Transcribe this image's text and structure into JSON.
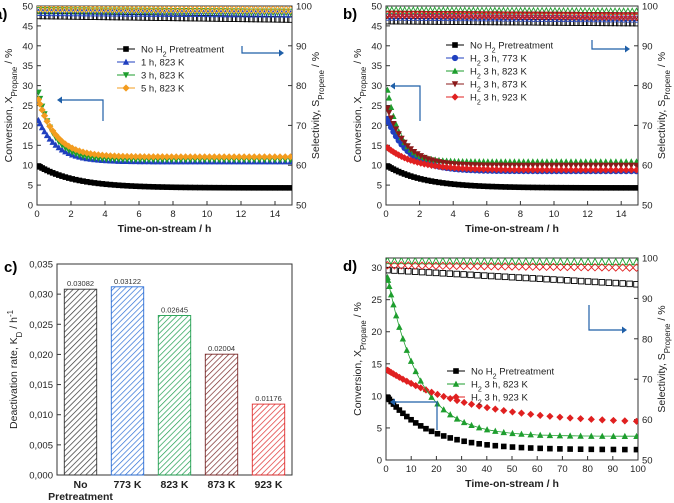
{
  "chart_data": [
    {
      "panel": "a)",
      "type": "scatter",
      "xlabel": "Time-on-stream / h",
      "ylabel_left": {
        "prefix": "Conversion, X",
        "sub": "Propane",
        "suffix": " / %"
      },
      "ylabel_right": {
        "prefix": "Selectivity, S",
        "sub": "Propene",
        "suffix": " / %"
      },
      "xlim": [
        0,
        15
      ],
      "ylim_left": [
        0,
        50
      ],
      "ylim_right": [
        50,
        100
      ],
      "xticks": [
        0,
        2,
        4,
        6,
        8,
        10,
        12,
        14
      ],
      "yticks_left": [
        0,
        5,
        10,
        15,
        20,
        25,
        30,
        35,
        40,
        45,
        50
      ],
      "yticks_right": [
        50,
        60,
        70,
        80,
        90,
        100
      ],
      "legend_position": "upper-middle",
      "series": [
        {
          "name": "No H2 Pretreatment",
          "label": [
            "No H",
            "2",
            " Pretreatment"
          ],
          "color": "#000000",
          "marker": "square",
          "conversion": {
            "start": 9.8,
            "end": 4.3,
            "k": 0.45
          },
          "selectivity": {
            "start": 97.5,
            "end": 96.6
          }
        },
        {
          "name": "1 h, 823 K",
          "label": [
            "1 h, 823 K"
          ],
          "color": "#1f3fbf",
          "marker": "triangle-up",
          "conversion": {
            "start": 21.3,
            "end": 10.9,
            "k": 0.9
          },
          "selectivity": {
            "start": 98.3,
            "end": 97.9
          }
        },
        {
          "name": "3 h, 823 K",
          "label": [
            "3 h, 823 K"
          ],
          "color": "#1e9e2e",
          "marker": "triangle-down",
          "conversion": {
            "start": 28.3,
            "end": 11.3,
            "k": 1.1
          },
          "selectivity": {
            "start": 98.9,
            "end": 98.5
          }
        },
        {
          "name": "5 h, 823 K",
          "label": [
            "5 h, 823 K"
          ],
          "color": "#f39c1f",
          "marker": "diamond",
          "conversion": {
            "start": 26.5,
            "end": 12.1,
            "k": 0.95
          },
          "selectivity": {
            "start": 99.3,
            "end": 99.0
          }
        }
      ]
    },
    {
      "panel": "b)",
      "type": "scatter",
      "xlabel": "Time-on-stream / h",
      "ylabel_left": {
        "prefix": "Conversion, X",
        "sub": "Propane",
        "suffix": " / %"
      },
      "ylabel_right": {
        "prefix": "Selectivity, S",
        "sub": "Propene",
        "suffix": " / %"
      },
      "xlim": [
        0,
        15
      ],
      "ylim_left": [
        0,
        50
      ],
      "ylim_right": [
        50,
        100
      ],
      "xticks": [
        0,
        2,
        4,
        6,
        8,
        10,
        12,
        14
      ],
      "yticks_left": [
        0,
        5,
        10,
        15,
        20,
        25,
        30,
        35,
        40,
        45,
        50
      ],
      "yticks_right": [
        50,
        60,
        70,
        80,
        90,
        100
      ],
      "legend_position": "upper-middle",
      "series": [
        {
          "name": "No H2 Pretreatment",
          "label": [
            "No H",
            "2",
            " Pretreatment"
          ],
          "color": "#000000",
          "marker": "square",
          "conversion": {
            "start": 9.8,
            "end": 4.3,
            "k": 0.45
          },
          "selectivity": {
            "start": 96.2,
            "end": 95.7
          }
        },
        {
          "name": "H2 3 h, 773 K",
          "label": [
            "H",
            "2",
            " 3 h, 773 K"
          ],
          "color": "#1f3fbf",
          "marker": "circle",
          "conversion": {
            "start": 21.6,
            "end": 8.5,
            "k": 0.8
          },
          "selectivity": {
            "start": 97.2,
            "end": 96.7
          }
        },
        {
          "name": "H2 3 h, 823 K",
          "label": [
            "H",
            "2",
            " 3 h, 823 K"
          ],
          "color": "#1e9e2e",
          "marker": "triangle-up",
          "conversion": {
            "start": 28.9,
            "end": 10.9,
            "k": 1.3
          },
          "selectivity": {
            "start": 98.9,
            "end": 98.6
          }
        },
        {
          "name": "H2 3 h, 873 K",
          "label": [
            "H",
            "2",
            " 3 h, 873 K"
          ],
          "color": "#8b1a1a",
          "marker": "triangle-down",
          "conversion": {
            "start": 24.3,
            "end": 9.9,
            "k": 0.9
          },
          "selectivity": {
            "start": 98.0,
            "end": 97.6
          }
        },
        {
          "name": "H2 3 h, 923 K",
          "label": [
            "H",
            "2",
            " 3 h, 923 K"
          ],
          "color": "#e02020",
          "marker": "diamond",
          "conversion": {
            "start": 14.4,
            "end": 8.8,
            "k": 0.6
          },
          "selectivity": {
            "start": 97.8,
            "end": 97.3
          }
        }
      ]
    },
    {
      "panel": "c)",
      "type": "bar",
      "ylabel": {
        "prefix": "Deactivation rate, K",
        "sub": "D",
        "suffix": " / h",
        "sup": "-1"
      },
      "ylim": [
        0,
        0.035
      ],
      "yticks": [
        "0,000",
        "0,005",
        "0,010",
        "0,015",
        "0,020",
        "0,025",
        "0,030",
        "0,035"
      ],
      "categories": [
        [
          "No",
          "Pretreatment"
        ],
        [
          "773 K"
        ],
        [
          "823 K"
        ],
        [
          "873 K"
        ],
        [
          "923 K"
        ]
      ],
      "values": [
        0.03082,
        0.03122,
        0.02645,
        0.02004,
        0.01176
      ],
      "data_labels": [
        "0.03082",
        "0.03122",
        "0.02645",
        "0.02004",
        "0.01176"
      ],
      "colors": [
        "#333333",
        "#2d6fd6",
        "#1e9e4e",
        "#7a2a2a",
        "#e03030"
      ]
    },
    {
      "panel": "d)",
      "type": "scatter",
      "xlabel": "Time-on-stream / h",
      "ylabel_left": {
        "prefix": "Conversion, X",
        "sub": "Propane",
        "suffix": " / %"
      },
      "ylabel_right": {
        "prefix": "Selectivity, S",
        "sub": "Propene",
        "suffix": " / %"
      },
      "xlim": [
        0,
        100
      ],
      "ylim_left": [
        0,
        31.5
      ],
      "ylim_right": [
        50,
        100
      ],
      "xticks": [
        0,
        10,
        20,
        30,
        40,
        50,
        60,
        70,
        80,
        90,
        100
      ],
      "yticks_left": [
        0,
        5,
        10,
        15,
        20,
        25,
        30
      ],
      "yticks_right": [
        50,
        60,
        70,
        80,
        90,
        100
      ],
      "legend_position": "center-right",
      "series": [
        {
          "name": "No H2 Pretreatment",
          "label": [
            "No H",
            "2",
            " Pretreatment"
          ],
          "color": "#000000",
          "marker": "square",
          "conversion": {
            "start": 9.8,
            "end": 1.6,
            "k": 0.06
          },
          "selectivity": {
            "start": 97.0,
            "end": 93.5
          }
        },
        {
          "name": "H2 3 h, 823 K",
          "label": [
            "H",
            "2",
            " 3 h, 823 K"
          ],
          "color": "#1e9e2e",
          "marker": "triangle-up",
          "conversion": {
            "start": 28.5,
            "end": 3.7,
            "k": 0.08
          },
          "selectivity": {
            "start": 99.3,
            "end": 99.0
          }
        },
        {
          "name": "H2 3 h, 923 K",
          "label": [
            "H",
            "2",
            " 3 h, 923 K"
          ],
          "color": "#e02020",
          "marker": "diamond",
          "conversion": {
            "start": 14.0,
            "end": 5.6,
            "k": 0.03
          },
          "selectivity": {
            "start": 98.2,
            "end": 97.6
          }
        }
      ]
    }
  ]
}
